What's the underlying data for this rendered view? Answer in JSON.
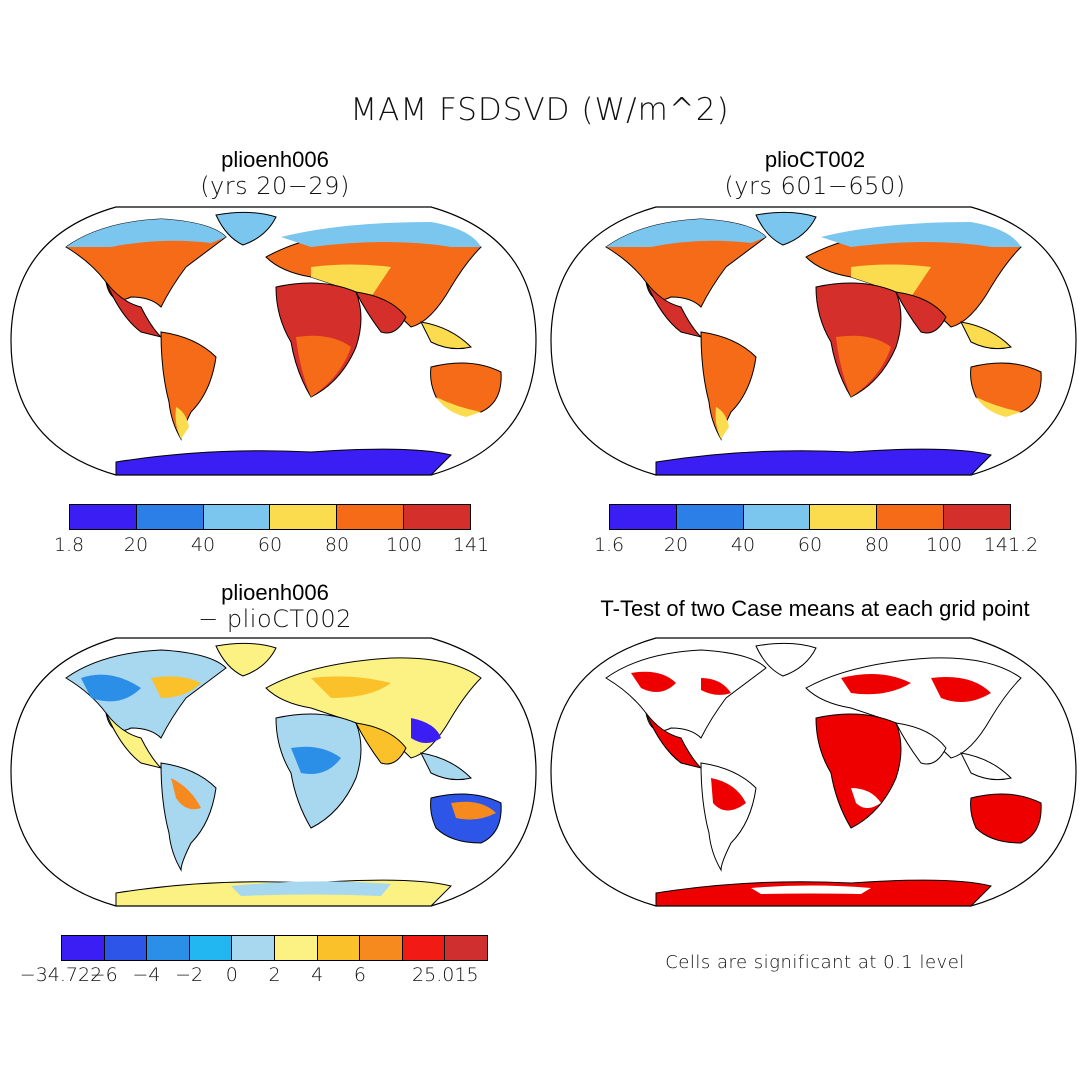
{
  "title": "MAM FSDSVD (W/m^2)",
  "panels": [
    {
      "title": "plioenh006",
      "subtitle": "(yrs 20−29)",
      "colorbar": {
        "colors": [
          "#3a1ef4",
          "#2c7fe6",
          "#7ac6ef",
          "#fbdc4e",
          "#f56b18",
          "#d42f2a"
        ],
        "labels": [
          "1.8",
          "20",
          "40",
          "60",
          "80",
          "100",
          "141"
        ]
      }
    },
    {
      "title": "plioCT002",
      "subtitle": "(yrs 601−650)",
      "colorbar": {
        "colors": [
          "#3a1ef4",
          "#2c7fe6",
          "#7ac6ef",
          "#fbdc4e",
          "#f56b18",
          "#d42f2a"
        ],
        "labels": [
          "1.6",
          "20",
          "40",
          "60",
          "80",
          "100",
          "141.2"
        ]
      }
    },
    {
      "title": "plioenh006",
      "subtitle": "− plioCT002",
      "colorbar": {
        "colors": [
          "#3a1ef4",
          "#2d56e8",
          "#2b8fe8",
          "#22b7f0",
          "#a8d7f0",
          "#fcf283",
          "#fbc12a",
          "#f78a1e",
          "#f21a14",
          "#cf2f2e"
        ],
        "labels": [
          "−34.722",
          "−6",
          "−4",
          "−2",
          "0",
          "2",
          "4",
          "6",
          "",
          "25.015"
        ]
      }
    },
    {
      "title": "T-Test of two Case means at each grid point",
      "note": "Cells are significant at 0.1 level"
    }
  ],
  "colors": {
    "land_outline": "#000000",
    "significant": "#ee0000"
  }
}
